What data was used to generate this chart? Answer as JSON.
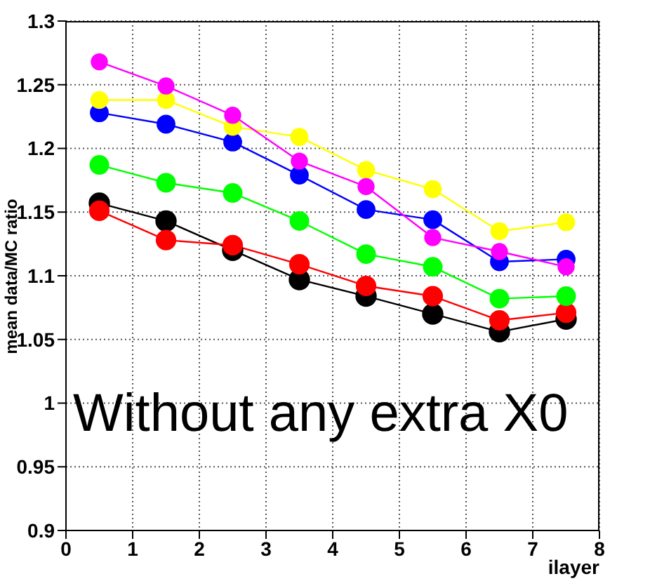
{
  "chart_data": {
    "type": "line",
    "xlabel": "ilayer",
    "ylabel": "mean data/MC ratio",
    "annotations": [
      "Without any extra X0"
    ],
    "x": [
      0.5,
      1.5,
      2.5,
      3.5,
      4.5,
      5.5,
      6.5,
      7.5
    ],
    "series": [
      {
        "color": "#000000",
        "values": [
          1.157,
          1.143,
          1.12,
          1.097,
          1.084,
          1.07,
          1.056,
          1.066
        ]
      },
      {
        "color": "#ff0000",
        "values": [
          1.151,
          1.128,
          1.124,
          1.109,
          1.092,
          1.084,
          1.065,
          1.071
        ]
      },
      {
        "color": "#00ff00",
        "values": [
          1.187,
          1.173,
          1.165,
          1.143,
          1.117,
          1.107,
          1.082,
          1.084
        ]
      },
      {
        "color": "#0000ff",
        "values": [
          1.228,
          1.219,
          1.205,
          1.179,
          1.152,
          1.144,
          1.111,
          1.113
        ]
      },
      {
        "color": "#ffff00",
        "values": [
          1.238,
          1.238,
          1.217,
          1.209,
          1.183,
          1.168,
          1.135,
          1.142
        ]
      },
      {
        "color": "#ff00ff",
        "values": [
          1.268,
          1.249,
          1.226,
          1.19,
          1.17,
          1.13,
          1.119,
          1.107
        ]
      }
    ],
    "xlim": [
      0,
      8
    ],
    "xticks": [
      0,
      1,
      2,
      3,
      4,
      5,
      6,
      7,
      8
    ],
    "ylim": [
      0.9,
      1.3
    ],
    "yticks": [
      0.9,
      0.95,
      1,
      1.05,
      1.1,
      1.15,
      1.2,
      1.25,
      1.3
    ],
    "grid": true,
    "marker": "circle",
    "line_style": "solid"
  }
}
